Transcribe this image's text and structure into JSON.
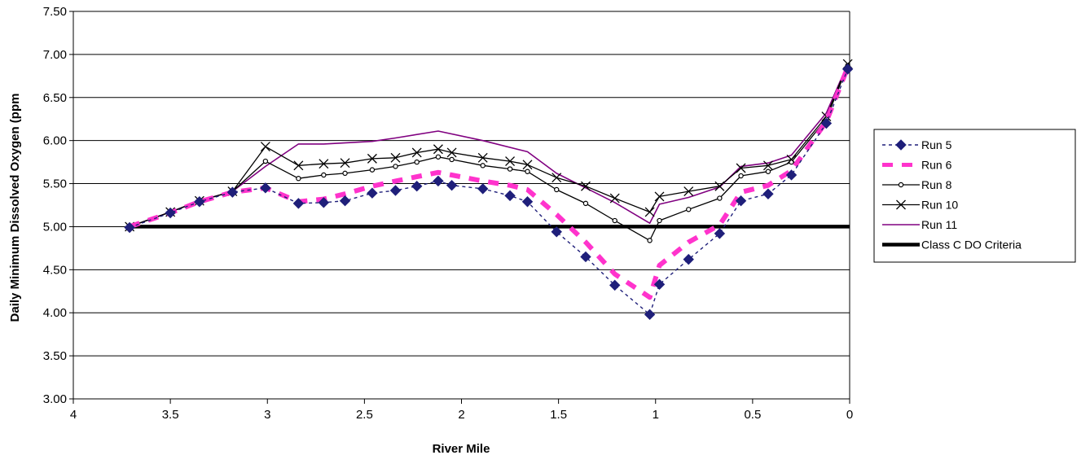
{
  "chart_data": {
    "type": "line",
    "xlabel": "River Mile",
    "ylabel": "Daily Minimum Dissolved Oxygen (ppm",
    "xlim": [
      4,
      0
    ],
    "ylim": [
      3.0,
      7.5
    ],
    "x_ticks": [
      "4",
      "3.5",
      "3",
      "2.5",
      "2",
      "1.5",
      "1",
      "0.5",
      "0"
    ],
    "y_ticks": [
      "3.00",
      "3.50",
      "4.00",
      "4.50",
      "5.00",
      "5.50",
      "6.00",
      "6.50",
      "7.00",
      "7.50"
    ],
    "grid": "horizontal",
    "legend_position": "right",
    "series": [
      {
        "name": "Run 5",
        "color": "#1f1f7a",
        "marker": "diamond",
        "points": [
          [
            3.71,
            4.99
          ],
          [
            3.5,
            5.16
          ],
          [
            3.35,
            5.29
          ],
          [
            3.18,
            5.4
          ],
          [
            3.01,
            5.45
          ],
          [
            2.84,
            5.27
          ],
          [
            2.71,
            5.28
          ],
          [
            2.6,
            5.3
          ],
          [
            2.46,
            5.39
          ],
          [
            2.34,
            5.42
          ],
          [
            2.23,
            5.47
          ],
          [
            2.12,
            5.53
          ],
          [
            2.05,
            5.48
          ],
          [
            1.89,
            5.44
          ],
          [
            1.75,
            5.36
          ],
          [
            1.66,
            5.29
          ],
          [
            1.51,
            4.94
          ],
          [
            1.36,
            4.65
          ],
          [
            1.21,
            4.32
          ],
          [
            1.03,
            3.98
          ],
          [
            0.98,
            4.33
          ],
          [
            0.83,
            4.62
          ],
          [
            0.67,
            4.92
          ],
          [
            0.56,
            5.3
          ],
          [
            0.42,
            5.38
          ],
          [
            0.3,
            5.6
          ],
          [
            0.12,
            6.2
          ],
          [
            0.01,
            6.83
          ]
        ]
      },
      {
        "name": "Run 6",
        "color": "#ff33cc",
        "marker": "none",
        "points": [
          [
            3.71,
            5.0
          ],
          [
            3.5,
            5.16
          ],
          [
            3.35,
            5.29
          ],
          [
            3.18,
            5.4
          ],
          [
            3.01,
            5.45
          ],
          [
            2.84,
            5.29
          ],
          [
            2.71,
            5.32
          ],
          [
            2.6,
            5.38
          ],
          [
            2.46,
            5.47
          ],
          [
            2.34,
            5.53
          ],
          [
            2.23,
            5.58
          ],
          [
            2.12,
            5.63
          ],
          [
            2.05,
            5.6
          ],
          [
            1.89,
            5.53
          ],
          [
            1.75,
            5.48
          ],
          [
            1.66,
            5.43
          ],
          [
            1.51,
            5.14
          ],
          [
            1.36,
            4.82
          ],
          [
            1.21,
            4.45
          ],
          [
            1.03,
            4.18
          ],
          [
            0.98,
            4.55
          ],
          [
            0.83,
            4.82
          ],
          [
            0.67,
            5.02
          ],
          [
            0.56,
            5.4
          ],
          [
            0.42,
            5.48
          ],
          [
            0.3,
            5.65
          ],
          [
            0.12,
            6.22
          ],
          [
            0.01,
            6.85
          ]
        ]
      },
      {
        "name": "Run 8",
        "color": "#000000",
        "marker": "circle",
        "points": [
          [
            3.71,
            5.0
          ],
          [
            3.5,
            5.17
          ],
          [
            3.35,
            5.3
          ],
          [
            3.18,
            5.41
          ],
          [
            3.01,
            5.76
          ],
          [
            2.84,
            5.56
          ],
          [
            2.71,
            5.6
          ],
          [
            2.6,
            5.62
          ],
          [
            2.46,
            5.66
          ],
          [
            2.34,
            5.7
          ],
          [
            2.23,
            5.75
          ],
          [
            2.12,
            5.81
          ],
          [
            2.05,
            5.78
          ],
          [
            1.89,
            5.71
          ],
          [
            1.75,
            5.67
          ],
          [
            1.66,
            5.64
          ],
          [
            1.51,
            5.43
          ],
          [
            1.36,
            5.27
          ],
          [
            1.21,
            5.07
          ],
          [
            1.03,
            4.84
          ],
          [
            0.98,
            5.07
          ],
          [
            0.83,
            5.2
          ],
          [
            0.67,
            5.33
          ],
          [
            0.56,
            5.59
          ],
          [
            0.42,
            5.64
          ],
          [
            0.3,
            5.75
          ],
          [
            0.12,
            6.25
          ],
          [
            0.01,
            6.87
          ]
        ]
      },
      {
        "name": "Run 10",
        "color": "#000000",
        "marker": "x",
        "points": [
          [
            3.71,
            5.0
          ],
          [
            3.5,
            5.17
          ],
          [
            3.35,
            5.3
          ],
          [
            3.18,
            5.41
          ],
          [
            3.01,
            5.93
          ],
          [
            2.84,
            5.71
          ],
          [
            2.71,
            5.73
          ],
          [
            2.6,
            5.74
          ],
          [
            2.46,
            5.79
          ],
          [
            2.34,
            5.8
          ],
          [
            2.23,
            5.86
          ],
          [
            2.12,
            5.9
          ],
          [
            2.05,
            5.86
          ],
          [
            1.89,
            5.8
          ],
          [
            1.75,
            5.76
          ],
          [
            1.66,
            5.72
          ],
          [
            1.51,
            5.57
          ],
          [
            1.36,
            5.47
          ],
          [
            1.21,
            5.33
          ],
          [
            1.03,
            5.17
          ],
          [
            0.98,
            5.35
          ],
          [
            0.83,
            5.41
          ],
          [
            0.67,
            5.47
          ],
          [
            0.56,
            5.68
          ],
          [
            0.42,
            5.71
          ],
          [
            0.3,
            5.78
          ],
          [
            0.12,
            6.28
          ],
          [
            0.01,
            6.89
          ]
        ]
      },
      {
        "name": "Run 11",
        "color": "#800080",
        "marker": "none",
        "points": [
          [
            3.71,
            5.0
          ],
          [
            3.5,
            5.17
          ],
          [
            3.35,
            5.3
          ],
          [
            3.18,
            5.41
          ],
          [
            3.01,
            5.7
          ],
          [
            2.84,
            5.96
          ],
          [
            2.71,
            5.96
          ],
          [
            2.46,
            5.99
          ],
          [
            2.34,
            6.03
          ],
          [
            2.12,
            6.11
          ],
          [
            1.89,
            6.0
          ],
          [
            1.66,
            5.87
          ],
          [
            1.51,
            5.62
          ],
          [
            1.36,
            5.45
          ],
          [
            1.21,
            5.28
          ],
          [
            1.03,
            5.04
          ],
          [
            0.98,
            5.26
          ],
          [
            0.83,
            5.34
          ],
          [
            0.67,
            5.46
          ],
          [
            0.56,
            5.7
          ],
          [
            0.42,
            5.74
          ],
          [
            0.3,
            5.83
          ],
          [
            0.12,
            6.32
          ],
          [
            0.01,
            6.89
          ]
        ]
      },
      {
        "name": "Class C DO Criteria",
        "color": "#000000",
        "marker": "none",
        "points": [
          [
            3.71,
            5.0
          ],
          [
            0.0,
            5.0
          ]
        ]
      }
    ]
  }
}
